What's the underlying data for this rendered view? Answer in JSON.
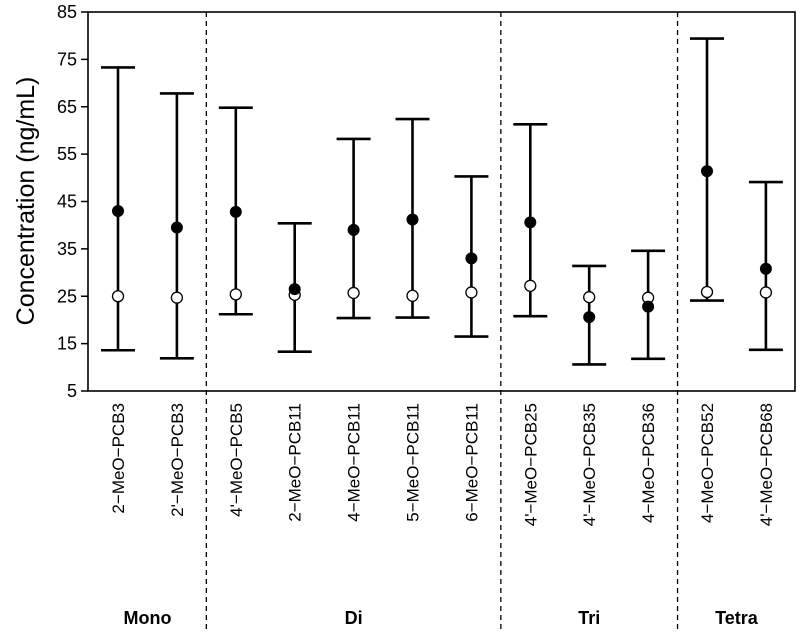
{
  "chart_data": {
    "type": "scatter",
    "ylabel": "Concentration (ng/mL)",
    "xlabel": "",
    "ylim": [
      5,
      85
    ],
    "yticks": [
      "5",
      "15",
      "25",
      "35",
      "45",
      "55",
      "65",
      "75",
      "85"
    ],
    "grid": false,
    "legend": "none",
    "categories": [
      "2−MeO−PCB3",
      "2'−MeO−PCB3",
      "4'−MeO−PCB5",
      "2−MeO−PCB11",
      "4−MeO−PCB11",
      "5−MeO−PCB11",
      "6−MeO−PCB11",
      "4'−MeO−PCB25",
      "4'−MeO−PCB35",
      "4−MeO−PCB36",
      "4−MeO−PCB52",
      "4'−MeO−PCB68"
    ],
    "groups": [
      {
        "label": "Mono",
        "start": 0,
        "end": 1
      },
      {
        "label": "Di",
        "start": 2,
        "end": 6
      },
      {
        "label": "Tri",
        "start": 7,
        "end": 9
      },
      {
        "label": "Tetra",
        "start": 10,
        "end": 11
      }
    ],
    "series": [
      {
        "style": "filled",
        "values": [
          43,
          39.5,
          42.8,
          26.5,
          39,
          41.2,
          33,
          40.6,
          20.6,
          22.8,
          51.4,
          30.8
        ]
      },
      {
        "style": "open",
        "values": [
          25,
          24.7,
          25.4,
          25.3,
          25.7,
          25.1,
          25.8,
          27.2,
          24.8,
          24.7,
          25.9,
          25.8
        ]
      }
    ],
    "error_bars": {
      "upper": [
        73.3,
        67.8,
        64.8,
        40.4,
        58.2,
        62.4,
        50.3,
        61.3,
        31.4,
        34.6,
        79.4,
        49.1
      ],
      "lower": [
        13.6,
        11.9,
        21.2,
        13.3,
        20.4,
        20.5,
        16.5,
        20.8,
        10.6,
        11.8,
        24.1,
        13.7
      ]
    },
    "colors": {
      "filled": "#000000",
      "open": "#ffffff",
      "line": "#000000"
    }
  }
}
